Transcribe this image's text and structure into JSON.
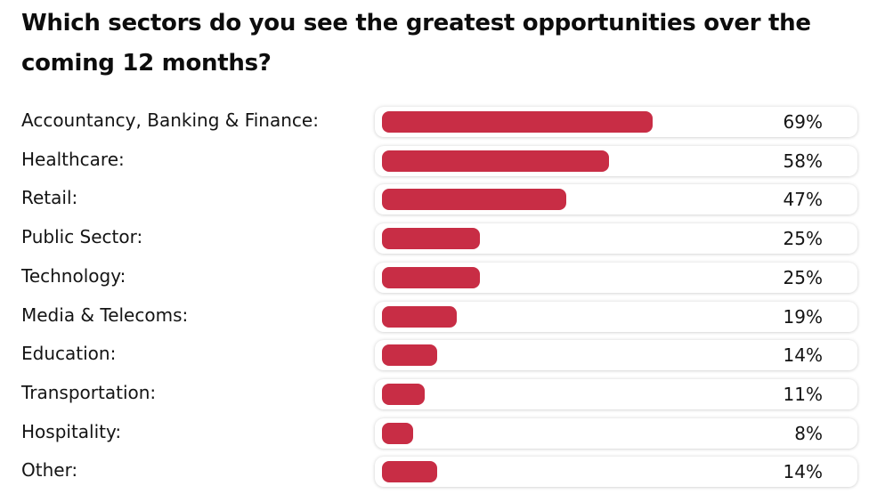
{
  "title": "Which sectors do you see the greatest opportunities over the coming 12 months?",
  "colors": {
    "bar": "#c82d45",
    "track": "#ffffff"
  },
  "chart_data": {
    "type": "bar",
    "orientation": "horizontal",
    "title": "Which sectors do you see the greatest opportunities over the coming 12 months?",
    "categories": [
      "Accountancy, Banking & Finance:",
      "Healthcare:",
      "Retail:",
      "Public Sector:",
      "Technology:",
      "Media & Telecoms:",
      "Education:",
      "Transportation:",
      "Hospitality:",
      "Other:"
    ],
    "values": [
      69,
      58,
      47,
      25,
      25,
      19,
      14,
      11,
      8,
      14
    ],
    "value_labels": [
      "69%",
      "58%",
      "47%",
      "25%",
      "25%",
      "19%",
      "14%",
      "11%",
      "8%",
      "14%"
    ],
    "unit": "%",
    "xlim": [
      0,
      100
    ],
    "grid": false,
    "legend": "none"
  }
}
